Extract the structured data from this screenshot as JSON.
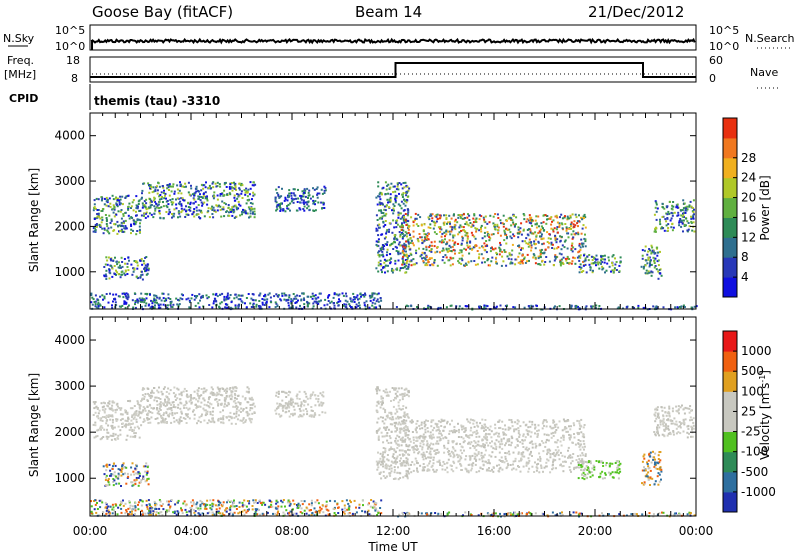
{
  "header": {
    "station": "Goose Bay (fitACF)",
    "beam": "Beam 14",
    "date": "21/Dec/2012"
  },
  "status_panels": {
    "nsky_label": "N.Sky",
    "nsky_ticks": [
      "10^5",
      "10^0"
    ],
    "nsearch_label": "N.Search",
    "nsearch_ticks": [
      "10^5",
      "10^0"
    ],
    "freq_label": "Freq.",
    "freq_unit": "[MHz]",
    "freq_ticks": [
      "18",
      "8"
    ],
    "nave_label": "Nave",
    "nave_ticks": [
      "60",
      "0"
    ],
    "cpid_label": "CPID",
    "cpid_text": "themis (tau) -3310",
    "freq_steps": [
      {
        "t": 0.0,
        "freq": 10
      },
      {
        "t": 12.1,
        "freq": 15.6
      },
      {
        "t": 21.9,
        "freq": 10
      },
      {
        "t": 24.0,
        "freq": 10
      }
    ]
  },
  "chart_data": [
    {
      "type": "heatmap",
      "name": "power",
      "ylabel": "Slant Range [km]",
      "ylim": [
        180,
        4500
      ],
      "yticks": [
        "1000",
        "2000",
        "3000",
        "4000"
      ],
      "colorbar_label": "Power [dB]",
      "colorbar_ticks": [
        "4",
        "8",
        "12",
        "16",
        "20",
        "24",
        "28"
      ],
      "colorbar_colors": [
        "#1010e0",
        "#2838b8",
        "#2f6f8f",
        "#2e8b57",
        "#60b040",
        "#b0c828",
        "#f0b020",
        "#f07820",
        "#e83010"
      ],
      "scatter_regions": [
        {
          "t_start": 0.1,
          "t_end": 2.0,
          "range_min": 1850,
          "range_max": 2700,
          "level": "mid"
        },
        {
          "t_start": 2.0,
          "t_end": 6.5,
          "range_min": 2200,
          "range_max": 3000,
          "level": "mid"
        },
        {
          "t_start": 7.3,
          "t_end": 9.3,
          "range_min": 2350,
          "range_max": 2900,
          "level": "low"
        },
        {
          "t_start": 0.5,
          "t_end": 2.3,
          "range_min": 850,
          "range_max": 1350,
          "level": "mid"
        },
        {
          "t_start": 11.3,
          "t_end": 12.6,
          "range_min": 1000,
          "range_max": 3000,
          "level": "mid"
        },
        {
          "t_start": 12.3,
          "t_end": 19.6,
          "range_min": 1150,
          "range_max": 2300,
          "level": "high"
        },
        {
          "t_start": 19.3,
          "t_end": 21.0,
          "range_min": 1000,
          "range_max": 1400,
          "level": "mid"
        },
        {
          "t_start": 21.8,
          "t_end": 22.6,
          "range_min": 850,
          "range_max": 1600,
          "level": "mid"
        },
        {
          "t_start": 22.3,
          "t_end": 23.9,
          "range_min": 1900,
          "range_max": 2600,
          "level": "mid"
        },
        {
          "t_start": 0.0,
          "t_end": 11.5,
          "range_min": 200,
          "range_max": 550,
          "level": "low"
        },
        {
          "t_start": 12.0,
          "t_end": 24.0,
          "range_min": 190,
          "range_max": 280,
          "level": "low"
        }
      ]
    },
    {
      "type": "heatmap",
      "name": "velocity",
      "ylabel": "Slant Range [km]",
      "ylim": [
        180,
        4500
      ],
      "yticks": [
        "1000",
        "2000",
        "3000",
        "4000"
      ],
      "colorbar_label": "Velocity [m s",
      "colorbar_label_sup": "-1",
      "colorbar_label_end": "]",
      "colorbar_ticks": [
        "1000",
        "500",
        "100",
        "25",
        "-25",
        "-100",
        "-500",
        "-1000"
      ],
      "colorbar_colors": [
        "#2030b0",
        "#2e6f9f",
        "#2e8b57",
        "#50c020",
        "#c8c8c0",
        "#c8c8c0",
        "#e0a020",
        "#f06010",
        "#e81818"
      ],
      "scatter_regions": [
        {
          "t_start": 0.1,
          "t_end": 2.0,
          "range_min": 1850,
          "range_max": 2700,
          "level": "gray"
        },
        {
          "t_start": 2.0,
          "t_end": 6.5,
          "range_min": 2200,
          "range_max": 3000,
          "level": "gray"
        },
        {
          "t_start": 7.3,
          "t_end": 9.3,
          "range_min": 2350,
          "range_max": 2900,
          "level": "gray"
        },
        {
          "t_start": 0.5,
          "t_end": 2.3,
          "range_min": 850,
          "range_max": 1350,
          "level": "mixed"
        },
        {
          "t_start": 11.3,
          "t_end": 12.6,
          "range_min": 1000,
          "range_max": 3000,
          "level": "gray"
        },
        {
          "t_start": 12.3,
          "t_end": 19.6,
          "range_min": 1150,
          "range_max": 2300,
          "level": "gray"
        },
        {
          "t_start": 19.3,
          "t_end": 21.0,
          "range_min": 1000,
          "range_max": 1400,
          "level": "green"
        },
        {
          "t_start": 21.8,
          "t_end": 22.6,
          "range_min": 850,
          "range_max": 1600,
          "level": "orange"
        },
        {
          "t_start": 22.3,
          "t_end": 23.9,
          "range_min": 1900,
          "range_max": 2600,
          "level": "gray"
        },
        {
          "t_start": 0.0,
          "t_end": 11.5,
          "range_min": 200,
          "range_max": 550,
          "level": "mixed"
        },
        {
          "t_start": 12.0,
          "t_end": 24.0,
          "range_min": 190,
          "range_max": 280,
          "level": "mixed"
        }
      ]
    }
  ],
  "xaxis": {
    "label": "Time UT",
    "ticks": [
      "00:00",
      "04:00",
      "08:00",
      "12:00",
      "16:00",
      "20:00",
      "00:00"
    ],
    "xlim": [
      0,
      24
    ]
  }
}
